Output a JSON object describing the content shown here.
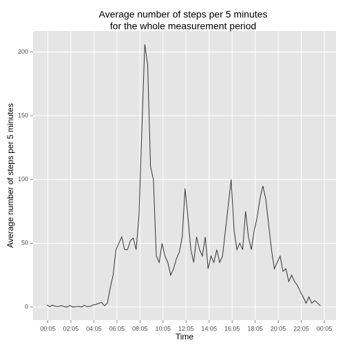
{
  "chart_data": {
    "type": "line",
    "title": [
      "Average number of steps per 5 minutes",
      "for the whole measurement period"
    ],
    "x_label": "Time",
    "y_label": "Average number of steps per 5 minutes",
    "x": [
      0,
      0.25,
      0.5,
      0.75,
      1,
      1.25,
      1.5,
      1.75,
      2,
      2.25,
      2.5,
      2.75,
      3,
      3.25,
      3.5,
      3.75,
      4,
      4.25,
      4.5,
      4.75,
      5,
      5.25,
      5.5,
      5.75,
      6,
      6.25,
      6.5,
      6.75,
      7,
      7.25,
      7.5,
      7.75,
      8,
      8.25,
      8.5,
      8.75,
      9,
      9.25,
      9.5,
      9.75,
      10,
      10.25,
      10.5,
      10.75,
      11,
      11.25,
      11.5,
      11.75,
      12,
      12.25,
      12.5,
      12.75,
      13,
      13.25,
      13.5,
      13.75,
      14,
      14.25,
      14.5,
      14.75,
      15,
      15.25,
      15.5,
      15.75,
      16,
      16.25,
      16.5,
      16.75,
      17,
      17.25,
      17.5,
      17.75,
      18,
      18.25,
      18.5,
      18.75,
      19,
      19.25,
      19.5,
      19.75,
      20,
      20.25,
      20.5,
      20.75,
      21,
      21.25,
      21.5,
      21.75,
      22,
      22.25,
      22.5,
      22.75,
      23,
      23.25,
      23.5,
      23.75
    ],
    "series": [
      {
        "name": "steps",
        "color": "#333333",
        "values": [
          1.7,
          0.3,
          1.5,
          0.5,
          0.3,
          1.1,
          0.3,
          0,
          1.2,
          0,
          0.2,
          0.5,
          0,
          1.3,
          0.3,
          0.5,
          1.5,
          2,
          3,
          3.5,
          1,
          3,
          15,
          25,
          45,
          50,
          55,
          45,
          45,
          52,
          54,
          45,
          72,
          140,
          206,
          190,
          110,
          100,
          40,
          35,
          50,
          40,
          35,
          25,
          30,
          38,
          43,
          55,
          93,
          70,
          45,
          35,
          55,
          45,
          40,
          55,
          30,
          40,
          35,
          45,
          35,
          40,
          60,
          80,
          100,
          60,
          45,
          50,
          45,
          75,
          55,
          45,
          60,
          70,
          85,
          95,
          85,
          65,
          45,
          30,
          35,
          40,
          28,
          30,
          20,
          25,
          20,
          17,
          12,
          8,
          3,
          8,
          3,
          5,
          3,
          1
        ]
      }
    ],
    "xlim": [
      -1.2,
      25.1
    ],
    "xticks": [
      {
        "value": 0.0833,
        "label": "00:05"
      },
      {
        "value": 2.0833,
        "label": "02:05"
      },
      {
        "value": 4.0833,
        "label": "04:05"
      },
      {
        "value": 6.0833,
        "label": "06:05"
      },
      {
        "value": 8.0833,
        "label": "08:05"
      },
      {
        "value": 10.0833,
        "label": "10:05"
      },
      {
        "value": 12.0833,
        "label": "12:05"
      },
      {
        "value": 14.0833,
        "label": "14:05"
      },
      {
        "value": 16.0833,
        "label": "16:05"
      },
      {
        "value": 18.0833,
        "label": "18:05"
      },
      {
        "value": 20.0833,
        "label": "20:05"
      },
      {
        "value": 22.0833,
        "label": "22:05"
      },
      {
        "value": 24.0833,
        "label": "00:05"
      }
    ],
    "ylim": [
      -10.3,
      216.5
    ],
    "yticks": [
      0,
      50,
      100,
      150,
      200
    ],
    "grid": true
  }
}
